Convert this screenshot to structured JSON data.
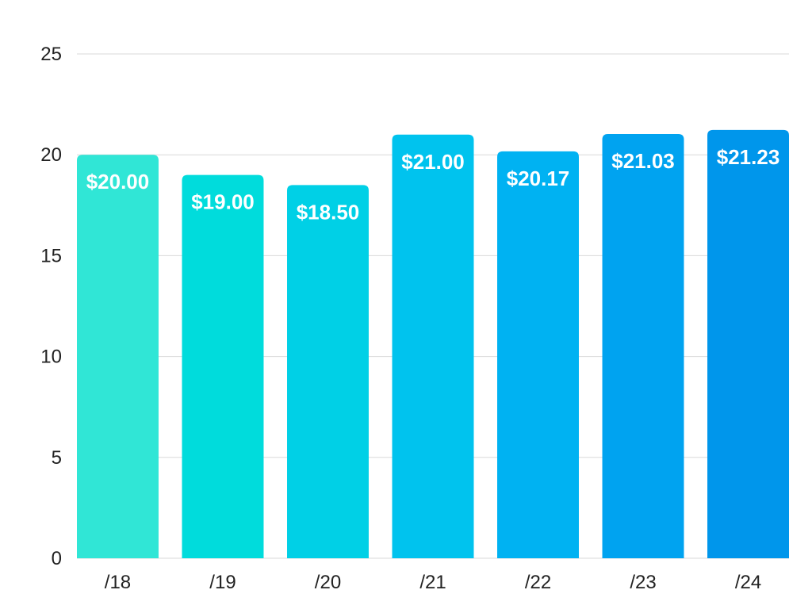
{
  "chart_data": {
    "type": "bar",
    "title": "",
    "xlabel": "",
    "ylabel": "",
    "categories": [
      "/18",
      "/19",
      "/20",
      "/21",
      "/22",
      "/23",
      "/24"
    ],
    "values": [
      20.0,
      19.0,
      18.5,
      21.0,
      20.17,
      21.03,
      21.23
    ],
    "data_labels": [
      "$20.00",
      "$19.00",
      "$18.50",
      "$21.00",
      "$20.17",
      "$21.03",
      "$21.23"
    ],
    "ylim": [
      0,
      25
    ],
    "yticks": [
      0,
      5,
      10,
      15,
      20,
      25
    ],
    "ytick_labels": [
      "0",
      "5",
      "10",
      "15",
      "20",
      "25"
    ],
    "grid": true,
    "legend": "none",
    "bar_colors": [
      "#30E6D6",
      "#00DCDC",
      "#00D0E6",
      "#00C3EE",
      "#00B2F2",
      "#00A3F0",
      "#0096EB"
    ]
  }
}
